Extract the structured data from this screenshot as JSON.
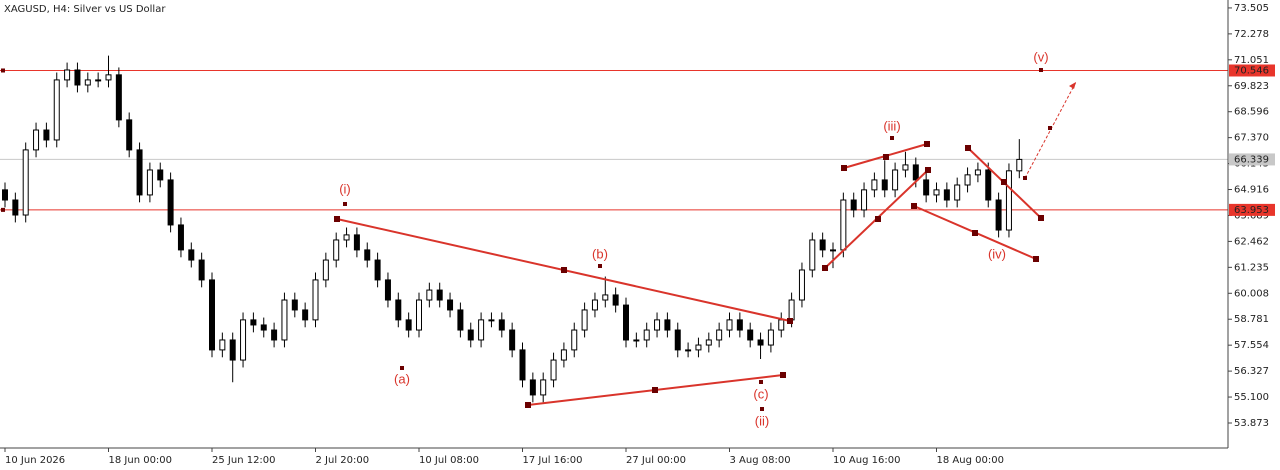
{
  "chart_data": {
    "type": "candlestick",
    "title": "XAGUSD, H4:  Silver vs US Dollar",
    "categories": [
      "10 Jun 2026",
      null,
      null,
      null,
      null,
      null,
      null,
      null,
      null,
      null,
      "18 Jun 00:00",
      null,
      null,
      null,
      null,
      null,
      null,
      null,
      null,
      null,
      "25 Jun 12:00",
      null,
      null,
      null,
      null,
      null,
      null,
      null,
      null,
      null,
      "2 Jul 20:00",
      null,
      null,
      null,
      null,
      null,
      null,
      null,
      null,
      null,
      "10 Jul 08:00",
      null,
      null,
      null,
      null,
      null,
      null,
      null,
      null,
      null,
      "17 Jul 16:00",
      null,
      null,
      null,
      null,
      null,
      null,
      null,
      null,
      null,
      "27 Jul 00:00",
      null,
      null,
      null,
      null,
      null,
      null,
      null,
      null,
      null,
      "3 Aug 08:00",
      null,
      null,
      null,
      null,
      null,
      null,
      null,
      null,
      null,
      "10 Aug 16:00",
      null,
      null,
      null,
      null,
      null,
      null,
      null,
      null,
      null,
      "18 Aug 00:00",
      null,
      null,
      null,
      null,
      null,
      null,
      null,
      null
    ],
    "open": [
      64.9,
      64.42,
      63.71,
      66.79,
      67.73,
      67.26,
      70.1,
      70.57,
      69.86,
      70.1,
      70.1,
      70.34,
      68.21,
      66.79,
      64.66,
      65.84,
      65.37,
      63.24,
      62.06,
      61.58,
      60.64,
      57.33,
      57.8,
      56.85,
      58.75,
      58.51,
      58.27,
      57.8,
      59.69,
      59.22,
      58.75,
      60.64,
      61.58,
      62.53,
      62.77,
      62.06,
      61.58,
      60.64,
      59.69,
      58.75,
      58.27,
      59.69,
      60.16,
      59.69,
      59.22,
      58.27,
      57.8,
      58.75,
      58.75,
      58.27,
      57.33,
      55.91,
      55.2,
      55.91,
      56.85,
      57.33,
      58.27,
      59.22,
      59.69,
      59.93,
      59.45,
      57.8,
      57.8,
      58.27,
      58.75,
      58.27,
      57.33,
      57.33,
      57.56,
      57.8,
      58.27,
      58.75,
      58.27,
      57.8,
      57.56,
      58.27,
      58.75,
      59.69,
      61.11,
      62.53,
      62.06,
      62.06,
      64.42,
      63.95,
      64.9,
      65.37,
      64.9,
      65.84,
      66.08,
      65.37,
      64.66,
      64.9,
      64.42,
      65.13,
      65.61,
      65.84,
      64.42,
      63.0,
      65.8
    ],
    "high": [
      65.25,
      64.77,
      67.14,
      68.08,
      68.08,
      70.45,
      70.92,
      70.92,
      70.45,
      70.45,
      71.25,
      70.69,
      68.56,
      67.14,
      66.19,
      66.19,
      65.72,
      63.59,
      62.41,
      61.93,
      60.99,
      58.15,
      58.15,
      59.1,
      59.1,
      58.86,
      58.62,
      60.04,
      60.04,
      59.57,
      60.99,
      61.93,
      62.88,
      63.12,
      63.12,
      62.41,
      61.93,
      60.99,
      60.04,
      59.1,
      60.04,
      60.51,
      60.51,
      60.04,
      59.57,
      58.62,
      59.1,
      59.1,
      59.1,
      58.62,
      57.68,
      56.26,
      56.26,
      57.2,
      57.68,
      58.62,
      59.57,
      60.04,
      60.8,
      60.28,
      59.8,
      58.15,
      58.62,
      59.1,
      59.1,
      58.62,
      57.68,
      57.91,
      58.15,
      58.62,
      59.1,
      59.1,
      58.62,
      58.15,
      58.62,
      59.1,
      60.04,
      61.46,
      62.88,
      62.88,
      62.41,
      64.77,
      64.77,
      65.25,
      65.72,
      66.3,
      66.19,
      66.7,
      66.43,
      65.72,
      65.25,
      65.25,
      65.48,
      65.96,
      66.19,
      66.19,
      64.77,
      66.15,
      67.3
    ],
    "low": [
      64.07,
      63.36,
      63.36,
      66.44,
      66.91,
      66.91,
      69.75,
      69.51,
      69.51,
      69.75,
      69.75,
      67.86,
      66.44,
      64.31,
      64.31,
      65.02,
      62.89,
      61.71,
      61.23,
      60.29,
      56.98,
      56.98,
      55.8,
      56.5,
      58.16,
      57.92,
      57.45,
      57.45,
      58.87,
      58.4,
      58.4,
      60.29,
      61.23,
      62.18,
      61.71,
      61.23,
      60.29,
      59.34,
      58.4,
      57.92,
      57.92,
      59.34,
      59.34,
      58.87,
      57.92,
      57.45,
      57.45,
      58.4,
      57.92,
      56.98,
      55.56,
      54.85,
      54.85,
      55.56,
      56.5,
      56.98,
      57.92,
      58.87,
      59.34,
      59.1,
      57.45,
      57.45,
      57.45,
      57.92,
      57.92,
      56.98,
      56.98,
      56.98,
      57.21,
      57.45,
      57.92,
      57.92,
      57.45,
      56.9,
      57.21,
      57.92,
      58.4,
      59.34,
      60.76,
      61.71,
      61.2,
      61.71,
      63.6,
      63.6,
      64.55,
      64.55,
      64.55,
      65.49,
      65.02,
      64.31,
      64.31,
      64.07,
      64.07,
      64.78,
      65.26,
      64.07,
      62.65,
      62.65,
      65.45
    ],
    "close": [
      64.42,
      63.71,
      66.79,
      67.73,
      67.26,
      70.1,
      70.57,
      69.86,
      70.1,
      70.1,
      70.34,
      68.21,
      66.79,
      64.66,
      65.84,
      65.37,
      63.24,
      62.06,
      61.58,
      60.64,
      57.33,
      57.8,
      56.85,
      58.75,
      58.51,
      58.27,
      57.8,
      59.69,
      59.22,
      58.75,
      60.64,
      61.58,
      62.53,
      62.77,
      62.06,
      61.58,
      60.64,
      59.69,
      58.75,
      58.27,
      59.69,
      60.16,
      59.69,
      59.22,
      58.27,
      57.8,
      58.75,
      58.75,
      58.27,
      57.33,
      55.91,
      55.2,
      55.91,
      56.85,
      57.33,
      58.27,
      59.22,
      59.69,
      59.93,
      59.45,
      57.8,
      57.8,
      58.27,
      58.75,
      58.27,
      57.33,
      57.33,
      57.56,
      57.8,
      58.27,
      58.75,
      58.27,
      57.8,
      57.56,
      58.27,
      58.75,
      59.69,
      61.11,
      62.53,
      62.06,
      62.06,
      64.42,
      63.95,
      64.9,
      65.37,
      64.9,
      65.84,
      66.08,
      65.37,
      64.66,
      64.9,
      64.42,
      65.13,
      65.61,
      65.84,
      64.42,
      63.0,
      65.8,
      66.34
    ],
    "ylim": [
      52.69,
      73.88
    ],
    "yticks": [
      73.505,
      72.278,
      71.051,
      69.823,
      68.596,
      {
        "value": 67.37,
        "label": "67.370"
      },
      66.143,
      64.916,
      63.689,
      62.462,
      61.235,
      60.008,
      58.781,
      57.554,
      56.327,
      {
        "value": 55.1,
        "label": "55.100"
      },
      53.873
    ],
    "hlines": [
      {
        "value": 70.546,
        "color": "#e8352b"
      },
      {
        "value": 63.953,
        "color": "#e8352b"
      }
    ],
    "current_price": {
      "value": 66.339,
      "color": "#c8c8c8"
    },
    "annotations": [
      "(i)",
      "(a)",
      "(b)",
      "(c)",
      "(ii)",
      "(iii)",
      "(iv)",
      "(v)"
    ]
  }
}
